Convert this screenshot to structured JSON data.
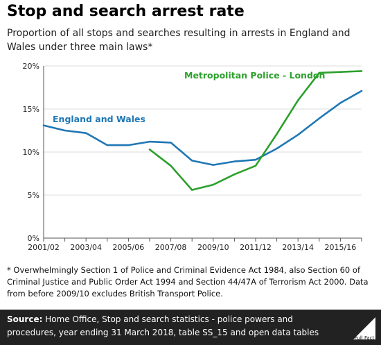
{
  "header": {
    "title": "Stop and search arrest rate",
    "subtitle": "Proportion of all stops and searches resulting in arrests in England and Wales under three main laws*"
  },
  "footnote": "* Overwhelmingly Section 1 of Police and Criminal Evidence Act 1984, also Section 60 of Criminal Justice and Public Order Act 1994 and Section 44/47A of Terrorism Act 2000. Data from before 2009/10 excludes British Transport Police.",
  "source": {
    "label": "Source:",
    "text": "Home Office, Stop and search statistics - police powers and procedures, year ending 31 March 2018, table SS_15 and open data tables"
  },
  "logo": {
    "text": "Full Fact",
    "icon": "full-fact-logo-icon"
  },
  "colors": {
    "england_wales": "#1f77b4",
    "metropolitan": "#2ca02c",
    "background": "#ffffff",
    "source_bar": "#222222"
  },
  "chart_data": {
    "type": "line",
    "title": "Stop and search arrest rate",
    "xlabel": "",
    "ylabel": "",
    "x": [
      "2001/02",
      "2002/03",
      "2003/04",
      "2004/05",
      "2005/06",
      "2006/07",
      "2007/08",
      "2008/09",
      "2009/10",
      "2010/11",
      "2011/12",
      "2012/13",
      "2013/14",
      "2014/15",
      "2015/16",
      "2016/17"
    ],
    "x_tick_labels": [
      "2001/02",
      "2003/04",
      "2005/06",
      "2007/08",
      "2009/10",
      "2011/12",
      "2013/14",
      "2015/16"
    ],
    "y_tick_labels": [
      "0%",
      "5%",
      "10%",
      "15%",
      "20%"
    ],
    "y_ticks": [
      0,
      5,
      10,
      15,
      20
    ],
    "ylim": [
      0,
      20
    ],
    "grid": "horizontal",
    "series": [
      {
        "name": "England and Wales",
        "color": "#1f77b4",
        "values": [
          13.1,
          12.5,
          12.2,
          10.8,
          10.8,
          11.2,
          11.1,
          9.0,
          8.5,
          8.9,
          9.1,
          10.4,
          12.0,
          13.9,
          15.7,
          17.1
        ]
      },
      {
        "name": "Metropolitan Police - London",
        "color": "#2ca02c",
        "values": [
          null,
          null,
          null,
          null,
          null,
          10.3,
          8.4,
          5.6,
          6.2,
          7.4,
          8.4,
          12.1,
          16.0,
          19.2,
          19.3,
          19.4
        ]
      }
    ]
  }
}
